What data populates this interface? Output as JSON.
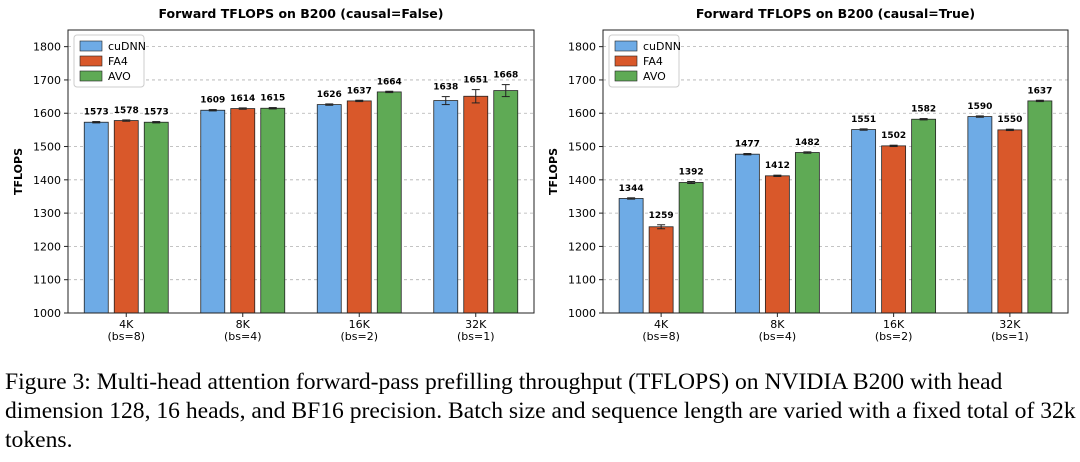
{
  "chart_data": [
    {
      "type": "bar",
      "title": "Forward TFLOPS on B200 (causal=False)",
      "xlabel": "",
      "ylabel": "TFLOPS",
      "ylim": [
        1000,
        1850
      ],
      "yticks": [
        1000,
        1100,
        1200,
        1300,
        1400,
        1500,
        1600,
        1700,
        1800
      ],
      "categories": [
        "4K\n(bs=8)",
        "8K\n(bs=4)",
        "16K\n(bs=2)",
        "32K\n(bs=1)"
      ],
      "series": [
        {
          "name": "cuDNN",
          "values": [
            1573,
            1609,
            1626,
            1638
          ],
          "errors": [
            2,
            2,
            2,
            12
          ],
          "labels": [
            "1573",
            "1609",
            "1626",
            "1638"
          ]
        },
        {
          "name": "FA4",
          "values": [
            1578,
            1614,
            1637,
            1651
          ],
          "errors": [
            2,
            2,
            2,
            20
          ],
          "labels": [
            "1578",
            "1614",
            "1637",
            "1651"
          ]
        },
        {
          "name": "AVO",
          "values": [
            1573,
            1615,
            1664,
            1668
          ],
          "errors": [
            2,
            2,
            2,
            18
          ],
          "labels": [
            "1573",
            "1615",
            "1664",
            "1668"
          ]
        }
      ],
      "grid": "y",
      "legend": "top-left"
    },
    {
      "type": "bar",
      "title": "Forward TFLOPS on B200 (causal=True)",
      "xlabel": "",
      "ylabel": "TFLOPS",
      "ylim": [
        1000,
        1850
      ],
      "yticks": [
        1000,
        1100,
        1200,
        1300,
        1400,
        1500,
        1600,
        1700,
        1800
      ],
      "categories": [
        "4K\n(bs=8)",
        "8K\n(bs=4)",
        "16K\n(bs=2)",
        "32K\n(bs=1)"
      ],
      "series": [
        {
          "name": "cuDNN",
          "values": [
            1344,
            1477,
            1551,
            1590
          ],
          "errors": [
            2,
            2,
            2,
            2
          ],
          "labels": [
            "1344",
            "1477",
            "1551",
            "1590"
          ]
        },
        {
          "name": "FA4",
          "values": [
            1259,
            1412,
            1502,
            1550
          ],
          "errors": [
            6,
            2,
            2,
            2
          ],
          "labels": [
            "1259",
            "1412",
            "1502",
            "1550"
          ]
        },
        {
          "name": "AVO",
          "values": [
            1392,
            1482,
            1582,
            1637
          ],
          "errors": [
            3,
            2,
            2,
            2
          ],
          "labels": [
            "1392",
            "1482",
            "1582",
            "1637"
          ]
        }
      ],
      "grid": "y",
      "legend": "top-left"
    }
  ],
  "colors": {
    "cuDNN": "#6eabe6",
    "FA4": "#d9582a",
    "AVO": "#5faa55"
  },
  "caption": "Figure 3: Multi-head attention forward-pass prefilling throughput (TFLOPS) on NVIDIA B200 with head dimension 128, 16 heads, and BF16 precision. Batch size and sequence length are varied with a fixed total of 32k tokens."
}
